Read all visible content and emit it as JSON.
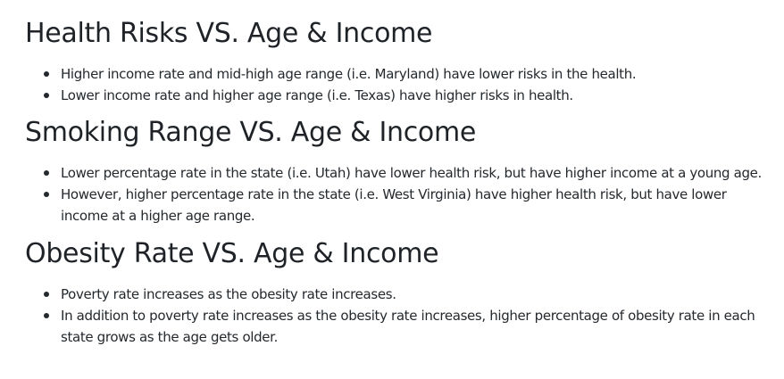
{
  "sections": [
    {
      "title": "Health Risks VS. Age & Income",
      "bullets": [
        "Higher income rate and mid-high age range (i.e. Maryland) have lower risks in the health.",
        "Lower income rate and higher age range (i.e. Texas) have higher risks in health."
      ]
    },
    {
      "title": "Smoking Range VS. Age & Income",
      "bullets": [
        "Lower percentage rate in the state (i.e. Utah) have lower health risk, but have higher income at a young age.",
        "However, higher percentage rate in the state (i.e. West Virginia) have higher health risk, but have lower income at a higher age range."
      ]
    },
    {
      "title": "Obesity Rate VS. Age & Income",
      "bullets": [
        "Poverty rate increases as the obesity rate increases.",
        "In addition to poverty rate increases as the obesity rate increases, higher percentage of obesity rate in each state grows as the age gets older."
      ]
    }
  ]
}
